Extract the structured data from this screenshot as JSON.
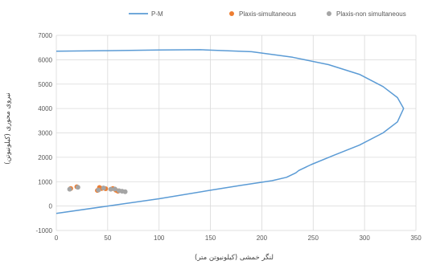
{
  "chart_data": {
    "type": "scatter",
    "title": "",
    "xlabel": "لنگر خمشی (کیلونیوتن متر)",
    "ylabel": "نیروی محوری (کیلونیوتن)",
    "xlim": [
      0,
      350
    ],
    "ylim": [
      -1000,
      7000
    ],
    "x_ticks": [
      "0",
      "50",
      "100",
      "150",
      "200",
      "250",
      "300",
      "350"
    ],
    "y_ticks": [
      "-1000",
      "0",
      "1000",
      "2000",
      "3000",
      "4000",
      "5000",
      "6000",
      "7000"
    ],
    "grid": true,
    "legend_position": "top",
    "series": [
      {
        "name": "P-M",
        "kind": "line",
        "color": "#5b9bd5",
        "points": [
          [
            0,
            6350
          ],
          [
            50,
            6370
          ],
          [
            100,
            6400
          ],
          [
            140,
            6410
          ],
          [
            190,
            6330
          ],
          [
            230,
            6100
          ],
          [
            265,
            5800
          ],
          [
            295,
            5400
          ],
          [
            318,
            4900
          ],
          [
            332,
            4450
          ],
          [
            338,
            4000
          ],
          [
            332,
            3450
          ],
          [
            318,
            3000
          ],
          [
            295,
            2500
          ],
          [
            270,
            2080
          ],
          [
            248,
            1700
          ],
          [
            236,
            1460
          ],
          [
            233,
            1360
          ],
          [
            224,
            1180
          ],
          [
            210,
            1040
          ],
          [
            180,
            850
          ],
          [
            150,
            650
          ],
          [
            100,
            300
          ],
          [
            50,
            0
          ],
          [
            0,
            -300
          ]
        ]
      },
      {
        "name": "Plaxis-simultaneous",
        "kind": "scatter",
        "color": "#ed7d31",
        "points": [
          [
            14,
            720
          ],
          [
            20,
            790
          ],
          [
            40,
            640
          ],
          [
            42,
            760
          ],
          [
            44,
            720
          ],
          [
            48,
            710
          ],
          [
            55,
            720
          ],
          [
            58,
            650
          ],
          [
            60,
            610
          ]
        ]
      },
      {
        "name": "Plaxis-non simultaneous",
        "kind": "scatter",
        "color": "#a5a5a5",
        "points": [
          [
            13,
            690
          ],
          [
            21,
            770
          ],
          [
            41,
            660
          ],
          [
            46,
            740
          ],
          [
            53,
            690
          ],
          [
            57,
            700
          ],
          [
            61,
            630
          ],
          [
            64,
            610
          ],
          [
            67,
            590
          ]
        ]
      }
    ]
  }
}
